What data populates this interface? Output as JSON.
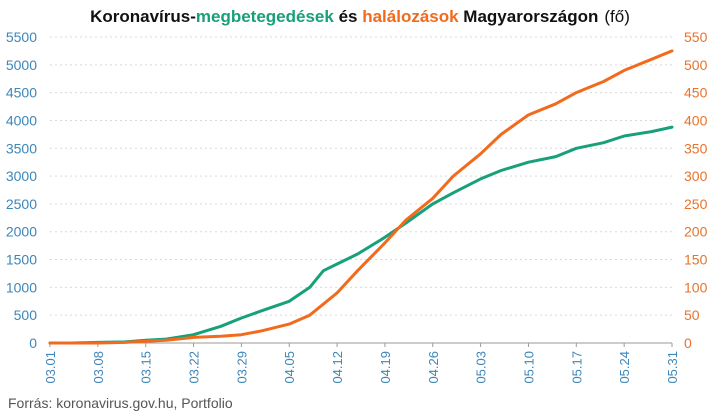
{
  "chart_data": {
    "type": "line",
    "title": {
      "part1": "Koronavírus-",
      "part2": "megbetegedések",
      "part3": " és ",
      "part4": "halálozások",
      "part5": " Magyarországon",
      "unit": "(fő)"
    },
    "source": "Forrás: koronavirus.gov.hu, Portfolio",
    "x_ticks": [
      "03.01",
      "03.08",
      "03.15",
      "03.22",
      "03.29",
      "04.05",
      "04.12",
      "04.19",
      "04.26",
      "05.03",
      "05.10",
      "05.17",
      "05.24",
      "05.31"
    ],
    "y_left": {
      "min": 0,
      "max": 5500,
      "ticks": [
        0,
        500,
        1000,
        1500,
        2000,
        2500,
        3000,
        3500,
        4000,
        4500,
        5000,
        5500
      ]
    },
    "y_right": {
      "min": 0,
      "max": 550,
      "ticks": [
        0,
        50,
        100,
        150,
        200,
        250,
        300,
        350,
        400,
        450,
        500,
        550
      ]
    },
    "grid": true,
    "colors": {
      "cases": "#17a079",
      "deaths": "#f26a1b",
      "axis_left": "#3d86b8",
      "axis_right": "#e8732a",
      "title": "#111111"
    },
    "series": [
      {
        "name": "megbetegedések",
        "axis": "left",
        "x": [
          "03.01",
          "03.04",
          "03.08",
          "03.12",
          "03.15",
          "03.18",
          "03.22",
          "03.26",
          "03.29",
          "04.01",
          "04.05",
          "04.08",
          "04.10",
          "04.12",
          "04.15",
          "04.19",
          "04.22",
          "04.26",
          "04.29",
          "05.03",
          "05.06",
          "05.10",
          "05.14",
          "05.17",
          "05.21",
          "05.24",
          "05.28",
          "05.31"
        ],
        "values": [
          0,
          0,
          10,
          20,
          50,
          70,
          150,
          300,
          450,
          580,
          750,
          1000,
          1300,
          1420,
          1600,
          1900,
          2150,
          2500,
          2700,
          2950,
          3100,
          3250,
          3350,
          3500,
          3600,
          3720,
          3800,
          3880
        ]
      },
      {
        "name": "halálozások",
        "axis": "right",
        "x": [
          "03.01",
          "03.08",
          "03.12",
          "03.15",
          "03.18",
          "03.22",
          "03.26",
          "03.29",
          "04.01",
          "04.05",
          "04.08",
          "04.10",
          "04.12",
          "04.15",
          "04.19",
          "04.22",
          "04.26",
          "04.29",
          "05.03",
          "05.06",
          "05.10",
          "05.14",
          "05.17",
          "05.21",
          "05.24",
          "05.28",
          "05.31"
        ],
        "values": [
          0,
          0,
          1,
          3,
          5,
          10,
          12,
          15,
          22,
          34,
          50,
          70,
          90,
          130,
          180,
          220,
          260,
          300,
          340,
          375,
          410,
          430,
          450,
          470,
          490,
          510,
          525
        ]
      }
    ]
  }
}
